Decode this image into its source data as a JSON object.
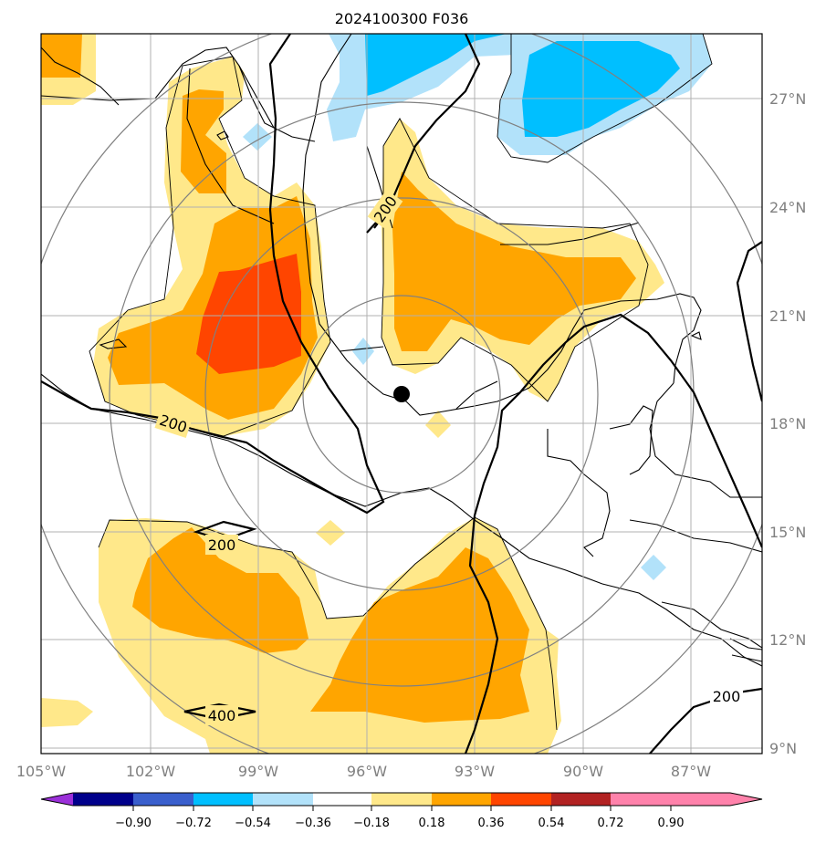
{
  "title": "2024100300 F036",
  "lat_labels": [
    "27°N",
    "24°N",
    "21°N",
    "18°N",
    "15°N",
    "12°N",
    "9°N"
  ],
  "lon_labels": [
    "105°W",
    "102°W",
    "99°W",
    "96°W",
    "93°W",
    "90°W",
    "87°W"
  ],
  "contour_labels": [
    "200",
    "200",
    "200",
    "200",
    "400"
  ],
  "colorbar": {
    "tick_labels": [
      "−0.90",
      "−0.72",
      "−0.54",
      "−0.36",
      "−0.18",
      "0.18",
      "0.36",
      "0.54",
      "0.72",
      "0.90"
    ],
    "colors": [
      "#9b30d9",
      "#00008b",
      "#3a5fcd",
      "#00bfff",
      "#b2e2fa",
      "#ffffff",
      "#ffe88a",
      "#ffa500",
      "#ff4500",
      "#b22222",
      "#ff82ab"
    ]
  },
  "fill_colors": {
    "light_yellow": "#ffe88a",
    "orange": "#ffa500",
    "red_orange": "#ff4500",
    "light_blue": "#b2e2fa",
    "deep_sky_blue": "#00bfff"
  },
  "center_marker": {
    "lon": -95.0,
    "lat": 18.8
  }
}
